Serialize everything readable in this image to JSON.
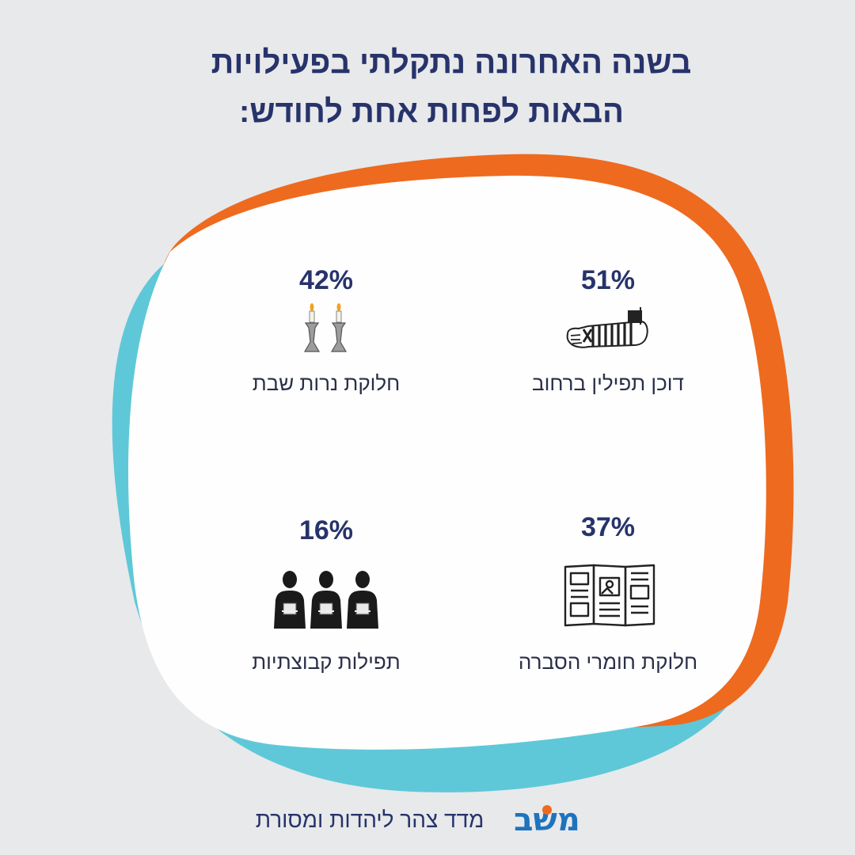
{
  "title": {
    "line1": "בשנה האחרונה נתקלתי בפעילויות",
    "line2": "הבאות לפחות אחת לחודש:"
  },
  "stats": [
    {
      "percent": "51%",
      "value": 51,
      "label": "דוכן תפילין ברחוב",
      "icon": "tefillin-arm-icon"
    },
    {
      "percent": "42%",
      "value": 42,
      "label": "חלוקת נרות שבת",
      "icon": "shabbat-candles-icon"
    },
    {
      "percent": "37%",
      "value": 37,
      "label": "חלוקת חומרי הסברה",
      "icon": "open-brochure-icon"
    },
    {
      "percent": "16%",
      "value": 16,
      "label": "תפילות קבוצתיות",
      "icon": "praying-group-icon"
    }
  ],
  "footer": {
    "logo_text": "משב",
    "tagline": "מדד צהר ליהדות ומסורת"
  },
  "colors": {
    "background": "#e8e9ea",
    "title": "#27336b",
    "orange": "#ee6a1f",
    "teal": "#5ec8d8",
    "card": "#fefefe"
  }
}
